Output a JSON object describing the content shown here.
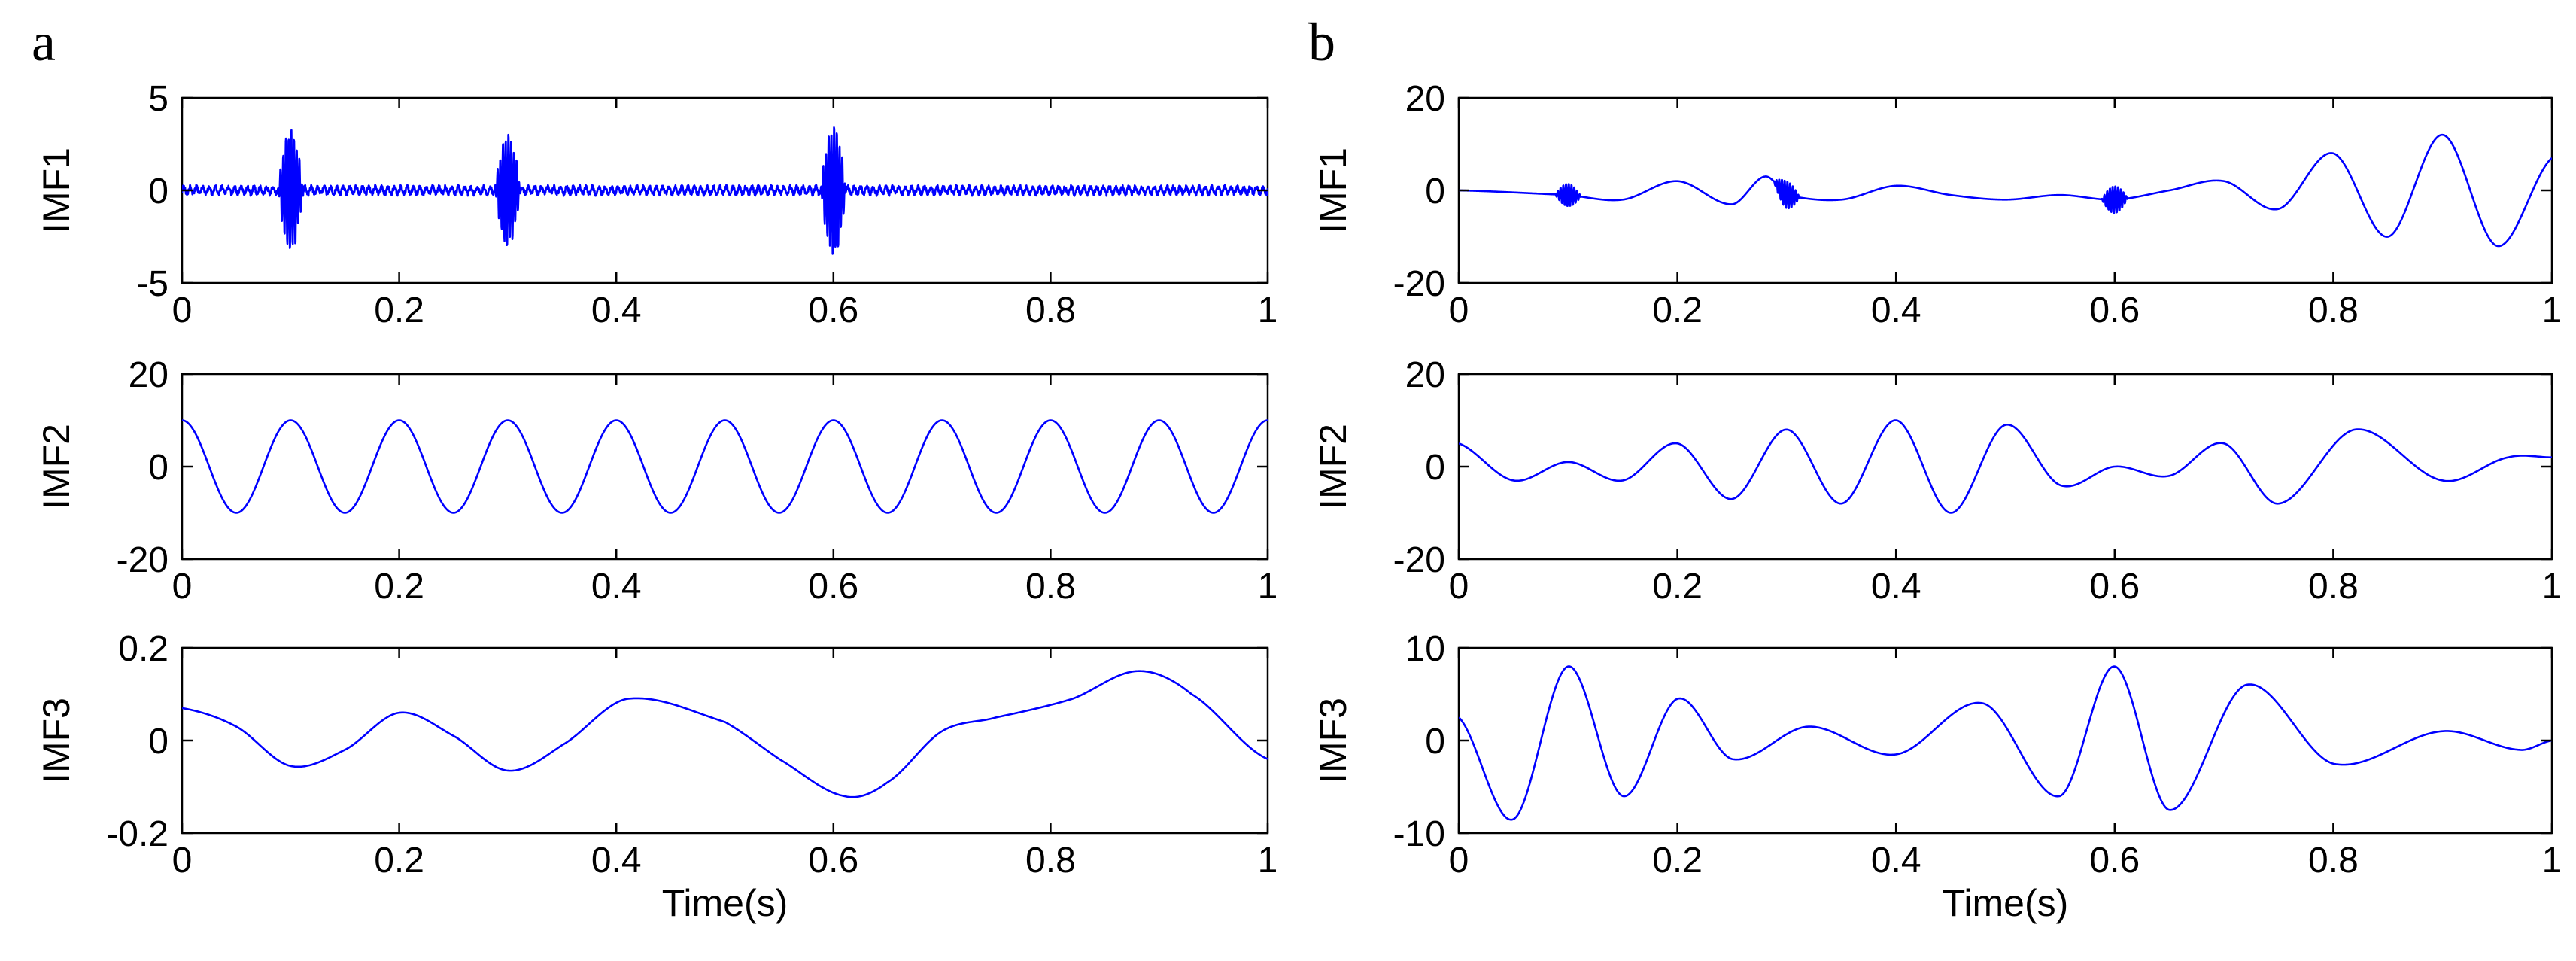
{
  "figure": {
    "trace_color": "#0000ff",
    "xlabel": "Time(s)"
  },
  "chart_data": [
    {
      "type": "line",
      "panel": "a",
      "panel_label": "a",
      "ylabel": "IMF1",
      "xlim": [
        0,
        1
      ],
      "ylim": [
        -5,
        5
      ],
      "xticks": [
        "0",
        "0.2",
        "0.4",
        "0.6",
        "0.8",
        "1"
      ],
      "yticks": [
        "5",
        "0",
        "-5"
      ],
      "ytick_values": [
        5,
        0,
        -5
      ],
      "series": [
        {
          "name": "IMF1",
          "kind": "bursts",
          "noise": 0.3,
          "bursts": [
            [
              0.1,
              3.2
            ],
            [
              0.3,
              3.0
            ],
            [
              0.6,
              3.4
            ]
          ],
          "burst_width": 0.012,
          "burst_freq": 400
        }
      ],
      "show_xlabel": false
    },
    {
      "type": "line",
      "panel": "a",
      "panel_label": "",
      "ylabel": "IMF2",
      "xlim": [
        0,
        1
      ],
      "ylim": [
        -20,
        20
      ],
      "xticks": [
        "0",
        "0.2",
        "0.4",
        "0.6",
        "0.8",
        "1"
      ],
      "yticks": [
        "20",
        "0",
        "-20"
      ],
      "ytick_values": [
        20,
        0,
        -20
      ],
      "series": [
        {
          "name": "IMF2",
          "kind": "sine",
          "amplitude": 10,
          "frequency": 10,
          "phase_deg": 90
        }
      ],
      "show_xlabel": false
    },
    {
      "type": "line",
      "panel": "a",
      "panel_label": "",
      "ylabel": "IMF3",
      "xlim": [
        0,
        1
      ],
      "ylim": [
        -0.2,
        0.2
      ],
      "xticks": [
        "0",
        "0.2",
        "0.4",
        "0.6",
        "0.8",
        "1"
      ],
      "yticks": [
        "0.2",
        "0",
        "-0.2"
      ],
      "ytick_values": [
        0.2,
        0,
        -0.2
      ],
      "series": [
        {
          "name": "IMF3",
          "kind": "points",
          "x": [
            0,
            0.05,
            0.1,
            0.15,
            0.2,
            0.25,
            0.3,
            0.35,
            0.41,
            0.5,
            0.55,
            0.61,
            0.65,
            0.7,
            0.75,
            0.82,
            0.88,
            0.93,
            1.0
          ],
          "y": [
            0.07,
            0.03,
            -0.055,
            -0.02,
            0.06,
            0.01,
            -0.065,
            -0.01,
            0.09,
            0.04,
            -0.04,
            -0.12,
            -0.09,
            0.02,
            0.05,
            0.09,
            0.15,
            0.1,
            -0.04
          ]
        }
      ],
      "show_xlabel": true
    },
    {
      "type": "line",
      "panel": "b",
      "panel_label": "b",
      "ylabel": "IMF1",
      "xlim": [
        0,
        1
      ],
      "ylim": [
        -20,
        20
      ],
      "xticks": [
        "0",
        "0.2",
        "0.4",
        "0.6",
        "0.8",
        "1"
      ],
      "yticks": [
        "20",
        "0",
        "-20"
      ],
      "ytick_values": [
        20,
        0,
        -20
      ],
      "series": [
        {
          "name": "IMF1",
          "kind": "points_bursts",
          "x": [
            0,
            0.1,
            0.15,
            0.2,
            0.25,
            0.28,
            0.3,
            0.35,
            0.4,
            0.45,
            0.5,
            0.55,
            0.6,
            0.65,
            0.7,
            0.75,
            0.8,
            0.85,
            0.9,
            0.95,
            1.0
          ],
          "y": [
            0,
            -1,
            -2,
            2,
            -3,
            3,
            -1,
            -2,
            1,
            -1,
            -2,
            -1,
            -2,
            0,
            2,
            -4,
            8,
            -10,
            12,
            -12,
            7
          ],
          "bursts": [
            [
              0.1,
              2.5
            ],
            [
              0.3,
              3
            ],
            [
              0.6,
              3
            ]
          ],
          "burst_width": 0.012,
          "burst_freq": 400
        }
      ],
      "show_xlabel": false
    },
    {
      "type": "line",
      "panel": "b",
      "panel_label": "",
      "ylabel": "IMF2",
      "xlim": [
        0,
        1
      ],
      "ylim": [
        -20,
        20
      ],
      "xticks": [
        "0",
        "0.2",
        "0.4",
        "0.6",
        "0.8",
        "1"
      ],
      "yticks": [
        "20",
        "0",
        "-20"
      ],
      "ytick_values": [
        20,
        0,
        -20
      ],
      "series": [
        {
          "name": "IMF2",
          "kind": "points",
          "x": [
            0,
            0.05,
            0.1,
            0.15,
            0.2,
            0.25,
            0.3,
            0.35,
            0.4,
            0.45,
            0.5,
            0.55,
            0.6,
            0.65,
            0.7,
            0.75,
            0.82,
            0.9,
            0.96,
            1.0
          ],
          "y": [
            5,
            -3,
            1,
            -3,
            5,
            -7,
            8,
            -8,
            10,
            -10,
            9,
            -4,
            0,
            -2,
            5,
            -8,
            8,
            -3,
            2,
            2
          ]
        }
      ],
      "show_xlabel": false
    },
    {
      "type": "line",
      "panel": "b",
      "panel_label": "",
      "ylabel": "IMF3",
      "xlim": [
        0,
        1
      ],
      "ylim": [
        -10,
        10
      ],
      "xticks": [
        "0",
        "0.2",
        "0.4",
        "0.6",
        "0.8",
        "1"
      ],
      "yticks": [
        "10",
        "0",
        "-10"
      ],
      "ytick_values": [
        10,
        0,
        -10
      ],
      "series": [
        {
          "name": "IMF3",
          "kind": "points",
          "x": [
            0,
            0.05,
            0.1,
            0.15,
            0.2,
            0.25,
            0.32,
            0.4,
            0.48,
            0.55,
            0.6,
            0.65,
            0.72,
            0.8,
            0.9,
            0.97,
            1.0
          ],
          "y": [
            2.5,
            -8.5,
            8,
            -6,
            4.5,
            -2,
            1.5,
            -1.5,
            4,
            -6,
            8,
            -7.5,
            6,
            -2.5,
            1,
            -1,
            0
          ]
        }
      ],
      "show_xlabel": true
    }
  ]
}
